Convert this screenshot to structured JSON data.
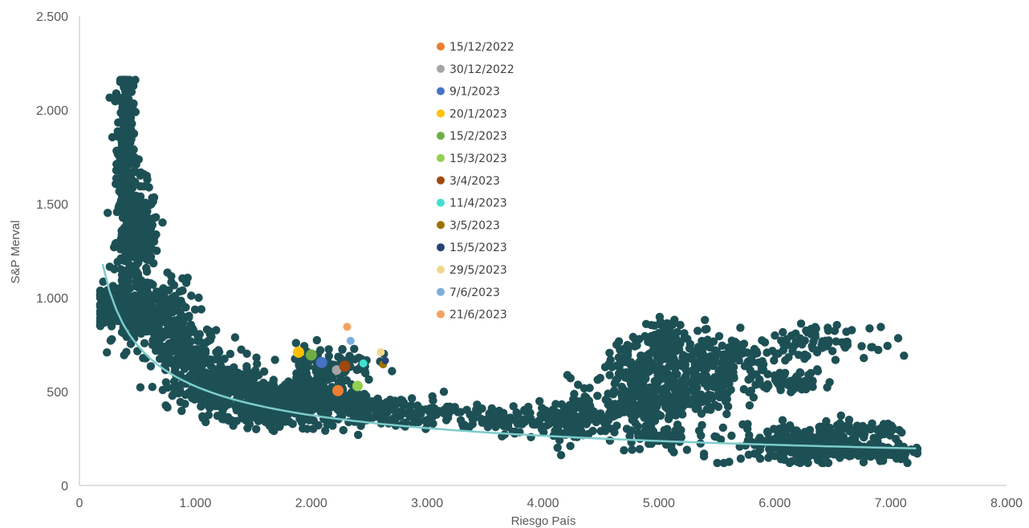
{
  "chart_data": {
    "type": "scatter",
    "title": "",
    "xlabel": "Riesgo País",
    "ylabel": "S&P Merval",
    "xlim": [
      0,
      8000
    ],
    "ylim": [
      0,
      2500
    ],
    "x_ticks": [
      0,
      1000,
      2000,
      3000,
      4000,
      5000,
      6000,
      7000,
      8000
    ],
    "x_tick_labels": [
      "0",
      "1.000",
      "2.000",
      "3.000",
      "4.000",
      "5.000",
      "6.000",
      "7.000",
      "8.000"
    ],
    "y_ticks": [
      0,
      500,
      1000,
      1500,
      2000,
      2500
    ],
    "y_tick_labels": [
      "0",
      "500",
      "1.000",
      "1.500",
      "2.000",
      "2.500"
    ],
    "grid": false,
    "legend_position": "top-center",
    "history_color": "#1d5055",
    "trend_color": "#7ccccc",
    "history_clusters": [
      {
        "cx": 400,
        "cy": 1800,
        "sx": 40,
        "sy": 230,
        "n": 260
      },
      {
        "cx": 500,
        "cy": 1300,
        "sx": 90,
        "sy": 150,
        "n": 260
      },
      {
        "cx": 300,
        "cy": 950,
        "sx": 110,
        "sy": 60,
        "n": 200
      },
      {
        "cx": 650,
        "cy": 900,
        "sx": 170,
        "sy": 100,
        "n": 220
      },
      {
        "cx": 950,
        "cy": 680,
        "sx": 150,
        "sy": 90,
        "n": 200
      },
      {
        "cx": 1250,
        "cy": 520,
        "sx": 170,
        "sy": 70,
        "n": 220
      },
      {
        "cx": 1650,
        "cy": 430,
        "sx": 220,
        "sy": 60,
        "n": 260
      },
      {
        "cx": 2050,
        "cy": 470,
        "sx": 240,
        "sy": 70,
        "n": 220
      },
      {
        "cx": 2150,
        "cy": 650,
        "sx": 200,
        "sy": 50,
        "n": 90
      },
      {
        "cx": 2700,
        "cy": 390,
        "sx": 280,
        "sy": 40,
        "n": 120
      },
      {
        "cx": 3600,
        "cy": 350,
        "sx": 280,
        "sy": 35,
        "n": 80
      },
      {
        "cx": 4200,
        "cy": 340,
        "sx": 220,
        "sy": 60,
        "n": 110
      },
      {
        "cx": 4750,
        "cy": 440,
        "sx": 260,
        "sy": 70,
        "n": 150
      },
      {
        "cx": 4800,
        "cy": 660,
        "sx": 120,
        "sy": 60,
        "n": 90
      },
      {
        "cx": 5050,
        "cy": 790,
        "sx": 80,
        "sy": 50,
        "n": 70
      },
      {
        "cx": 5200,
        "cy": 510,
        "sx": 240,
        "sy": 70,
        "n": 160
      },
      {
        "cx": 5500,
        "cy": 650,
        "sx": 250,
        "sy": 70,
        "n": 180
      },
      {
        "cx": 5000,
        "cy": 250,
        "sx": 160,
        "sy": 40,
        "n": 60
      },
      {
        "cx": 6100,
        "cy": 560,
        "sx": 200,
        "sy": 30,
        "n": 60
      },
      {
        "cx": 6350,
        "cy": 760,
        "sx": 240,
        "sy": 40,
        "n": 80
      },
      {
        "cx": 6300,
        "cy": 220,
        "sx": 330,
        "sy": 55,
        "n": 260
      },
      {
        "cx": 6850,
        "cy": 180,
        "sx": 200,
        "sy": 20,
        "n": 120
      },
      {
        "cx": 6750,
        "cy": 300,
        "sx": 150,
        "sy": 15,
        "n": 40
      }
    ],
    "trend": {
      "type": "power",
      "a": 16530,
      "b": -0.4984,
      "x_from": 200,
      "x_to": 7220
    },
    "series": [
      {
        "name": "15/12/2022",
        "color": "#ed7d31",
        "x": 2230,
        "y": 505
      },
      {
        "name": "30/12/2022",
        "color": "#a5a5a5",
        "x": 2220,
        "y": 615
      },
      {
        "name": "9/1/2023",
        "color": "#4472c4",
        "x": 2090,
        "y": 655
      },
      {
        "name": "20/1/2023",
        "color": "#ffc000",
        "x": 1890,
        "y": 710
      },
      {
        "name": "15/2/2023",
        "color": "#70ad47",
        "x": 2000,
        "y": 695
      },
      {
        "name": "15/3/2023",
        "color": "#92d050",
        "x": 2400,
        "y": 530
      },
      {
        "name": "3/4/2023",
        "color": "#9e480e",
        "x": 2290,
        "y": 635
      },
      {
        "name": "11/4/2023",
        "color": "#40e0d0",
        "x": 2450,
        "y": 650
      },
      {
        "name": "3/5/2023",
        "color": "#997300",
        "x": 2620,
        "y": 645
      },
      {
        "name": "15/5/2023",
        "color": "#264478",
        "x": 2640,
        "y": 665
      },
      {
        "name": "29/5/2023",
        "color": "#f0d88a",
        "x": 2600,
        "y": 710
      },
      {
        "name": "7/6/2023",
        "color": "#7cafdd",
        "x": 2340,
        "y": 770
      },
      {
        "name": "21/6/2023",
        "color": "#f4a261",
        "x": 2310,
        "y": 845
      }
    ]
  }
}
